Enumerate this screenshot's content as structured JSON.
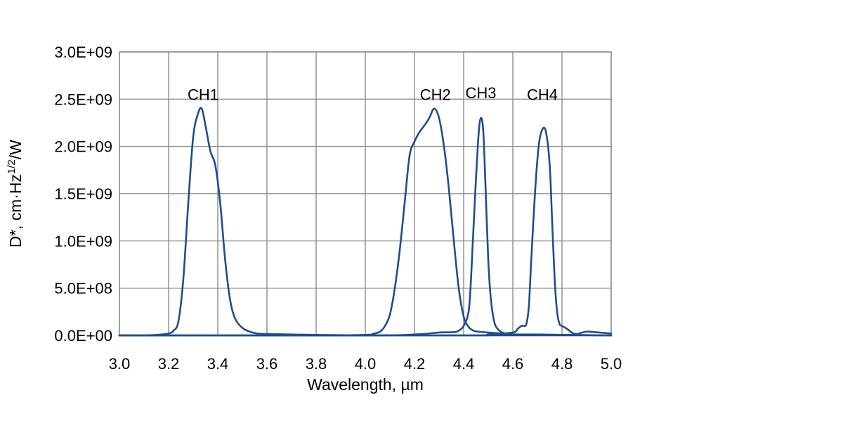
{
  "chart_data": {
    "type": "line",
    "title": "",
    "xlabel": "Wavelength, µm",
    "ylabel": {
      "prefix": "D*, cm·Hz",
      "superscript": "1/2",
      "suffix": "/W"
    },
    "xlim": [
      3.0,
      5.0
    ],
    "ylim": [
      0,
      3000000000
    ],
    "x_ticks": [
      3.0,
      3.2,
      3.4,
      3.6,
      3.8,
      4.0,
      4.2,
      4.4,
      4.6,
      4.8,
      5.0
    ],
    "x_tick_labels": [
      "3.0",
      "3.2",
      "3.4",
      "3.6",
      "3.8",
      "4.0",
      "4.2",
      "4.4",
      "4.6",
      "4.8",
      "5.0"
    ],
    "y_ticks": [
      0,
      500000000,
      1000000000,
      1500000000,
      2000000000,
      2500000000,
      3000000000
    ],
    "y_tick_labels": [
      "0.0E+00",
      "5.0E+08",
      "1.0E+09",
      "1.5E+09",
      "2.0E+09",
      "2.5E+09",
      "3.0E+09"
    ],
    "grid": true,
    "legend": "none",
    "line_color": "#1f4e8c",
    "series": [
      {
        "name": "CH1",
        "label_at": [
          3.34,
          2550000000.0
        ],
        "x": [
          3.0,
          3.1,
          3.15,
          3.2,
          3.22,
          3.24,
          3.26,
          3.28,
          3.3,
          3.32,
          3.335,
          3.35,
          3.37,
          3.39,
          3.41,
          3.43,
          3.45,
          3.47,
          3.5,
          3.53,
          3.56,
          3.6,
          3.7,
          3.8,
          4.0,
          4.2,
          4.4,
          4.6,
          4.8,
          5.0
        ],
        "y": [
          0,
          0,
          5000000.0,
          20000000.0,
          50000000.0,
          150000000.0,
          600000000.0,
          1400000000.0,
          2100000000.0,
          2350000000.0,
          2400000000.0,
          2220000000.0,
          1950000000.0,
          1800000000.0,
          1400000000.0,
          800000000.0,
          380000000.0,
          180000000.0,
          80000000.0,
          40000000.0,
          20000000.0,
          15000000.0,
          10000000.0,
          5000000.0,
          0,
          0,
          0,
          0,
          0,
          0
        ]
      },
      {
        "name": "CH2",
        "label_at": [
          4.285,
          2550000000.0
        ],
        "x": [
          3.0,
          3.8,
          4.0,
          4.03,
          4.06,
          4.08,
          4.1,
          4.12,
          4.14,
          4.16,
          4.18,
          4.2,
          4.22,
          4.24,
          4.26,
          4.28,
          4.3,
          4.32,
          4.34,
          4.36,
          4.38,
          4.4,
          4.42,
          4.44,
          4.46,
          4.48,
          4.5,
          4.55,
          4.6,
          4.8,
          5.0
        ],
        "y": [
          0,
          0,
          5000000.0,
          15000000.0,
          40000000.0,
          100000000.0,
          220000000.0,
          500000000.0,
          900000000.0,
          1400000000.0,
          1900000000.0,
          2050000000.0,
          2150000000.0,
          2220000000.0,
          2300000000.0,
          2400000000.0,
          2300000000.0,
          2000000000.0,
          1550000000.0,
          1000000000.0,
          500000000.0,
          200000000.0,
          90000000.0,
          50000000.0,
          40000000.0,
          35000000.0,
          30000000.0,
          20000000.0,
          10000000.0,
          5000000.0,
          0
        ]
      },
      {
        "name": "CH3",
        "label_at": [
          4.47,
          2570000000.0
        ],
        "x": [
          3.0,
          4.0,
          4.2,
          4.3,
          4.36,
          4.38,
          4.4,
          4.42,
          4.43,
          4.445,
          4.46,
          4.47,
          4.48,
          4.49,
          4.5,
          4.51,
          4.52,
          4.53,
          4.55,
          4.57,
          4.6,
          4.7,
          4.8,
          5.0
        ],
        "y": [
          0,
          0,
          10000000.0,
          30000000.0,
          35000000.0,
          50000000.0,
          100000000.0,
          250000000.0,
          600000000.0,
          1400000000.0,
          2100000000.0,
          2300000000.0,
          2150000000.0,
          1500000000.0,
          800000000.0,
          400000000.0,
          200000000.0,
          100000000.0,
          40000000.0,
          20000000.0,
          10000000.0,
          10000000.0,
          5000000.0,
          0
        ]
      },
      {
        "name": "CH4",
        "label_at": [
          4.72,
          2550000000.0
        ],
        "x": [
          3.0,
          4.4,
          4.5,
          4.6,
          4.62,
          4.635,
          4.645,
          4.655,
          4.665,
          4.675,
          4.69,
          4.705,
          4.72,
          4.735,
          4.75,
          4.76,
          4.77,
          4.78,
          4.79,
          4.8,
          4.82,
          4.84,
          4.86,
          4.9,
          4.95,
          5.0
        ],
        "y": [
          0,
          0,
          10000000.0,
          30000000.0,
          70000000.0,
          100000000.0,
          100000000.0,
          120000000.0,
          300000000.0,
          800000000.0,
          1500000000.0,
          2000000000.0,
          2180000000.0,
          2150000000.0,
          1800000000.0,
          1200000000.0,
          600000000.0,
          250000000.0,
          120000000.0,
          100000000.0,
          70000000.0,
          30000000.0,
          15000000.0,
          40000000.0,
          30000000.0,
          20000000.0
        ]
      }
    ]
  }
}
